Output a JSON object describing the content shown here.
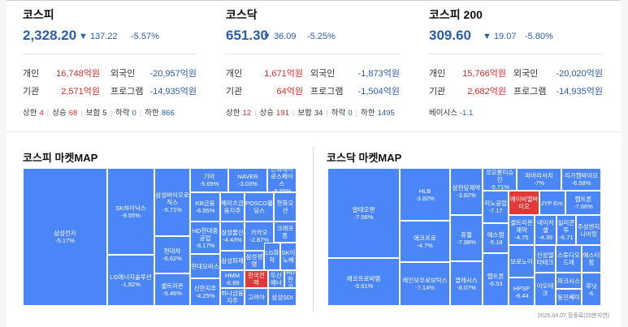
{
  "indices": [
    {
      "name": "코스피",
      "value": "2,328.20",
      "change": "▼ 137.22",
      "rate": "-5.57%",
      "rows": [
        {
          "l1": "개인",
          "v1": "16,748억원",
          "l2": "외국인",
          "v2": "-20,957억원"
        },
        {
          "l1": "기관",
          "v1": "2,571억원",
          "l2": "프로그램",
          "v2": "-14,935억원"
        }
      ],
      "stats": [
        {
          "label": "상한",
          "value": "4",
          "color": "red"
        },
        {
          "label": "상승",
          "value": "68",
          "color": "red"
        },
        {
          "label": "보합",
          "value": "5",
          "color": "gray"
        },
        {
          "label": "하락",
          "value": "0",
          "color": "blue"
        },
        {
          "label": "하한",
          "value": "866",
          "color": "blue"
        }
      ]
    },
    {
      "name": "코스닥",
      "value": "651.30",
      "change": "▼ 36.09",
      "rate": "-5.25%",
      "rows": [
        {
          "l1": "개인",
          "v1": "1,671억원",
          "l2": "외국인",
          "v2": "-1,873억원"
        },
        {
          "l1": "기관",
          "v1": "64억원",
          "l2": "프로그램",
          "v2": "-1,504억원"
        }
      ],
      "stats": [
        {
          "label": "상한",
          "value": "12",
          "color": "red"
        },
        {
          "label": "상승",
          "value": "191",
          "color": "red"
        },
        {
          "label": "보합",
          "value": "34",
          "color": "gray"
        },
        {
          "label": "하락",
          "value": "0",
          "color": "blue"
        },
        {
          "label": "하한",
          "value": "1495",
          "color": "blue"
        }
      ]
    },
    {
      "name": "코스피 200",
      "value": "309.60",
      "change": "▼ 19.07",
      "rate": "-5.80%",
      "rows": [
        {
          "l1": "개인",
          "v1": "15,766억원",
          "l2": "외국인",
          "v2": "-20,020억원"
        },
        {
          "l1": "기관",
          "v1": "2,682억원",
          "l2": "프로그램",
          "v2": "-14,935억원"
        }
      ],
      "stats": [
        {
          "label": "베이시스",
          "value": "-1.1",
          "color": "blue"
        }
      ]
    }
  ],
  "maps": [
    {
      "title": "코스피 마켓MAP",
      "tiles": [
        {
          "name": "삼성전자",
          "rate": "-5.17%",
          "color": "blue"
        },
        {
          "name": "SK하이닉스",
          "rate": "-9.55%",
          "color": "blue"
        },
        {
          "name": "LG에너지솔루션",
          "rate": "-1.82%",
          "color": "blue"
        },
        {
          "name": "삼성바이오로직스",
          "rate": "-5.71%",
          "color": "blue"
        },
        {
          "name": "현대차",
          "rate": "-6.62%",
          "color": "blue"
        },
        {
          "name": "셀트리온",
          "rate": "-5.46%",
          "color": "blue"
        },
        {
          "name": "기아",
          "rate": "-5.69%",
          "color": "blue"
        },
        {
          "name": "NAVER",
          "rate": "-3.03%",
          "color": "blue"
        },
        {
          "name": "한화에어로스페이스",
          "rate": "-8.55%",
          "color": "blue"
        },
        {
          "name": "KB금융",
          "rate": "-6.95%",
          "color": "blue"
        },
        {
          "name": "메리츠금융지주",
          "rate": "",
          "color": "blue"
        },
        {
          "name": "POSCO홀딩스",
          "rate": "",
          "color": "blue"
        },
        {
          "name": "한화오션",
          "rate": "",
          "color": "blue"
        },
        {
          "name": "HD현대중공업",
          "rate": "-8.17%",
          "color": "blue"
        },
        {
          "name": "삼성물산",
          "rate": "-4.43%",
          "color": "blue"
        },
        {
          "name": "카카오",
          "rate": "-2.87%",
          "color": "blue"
        },
        {
          "name": "크래프톤",
          "rate": "",
          "color": "blue"
        },
        {
          "name": "삼성화재",
          "rate": "",
          "color": "blue"
        },
        {
          "name": "삼성생명",
          "rate": "",
          "color": "blue"
        },
        {
          "name": "LG화학",
          "rate": "",
          "color": "blue"
        },
        {
          "name": "SK이노베",
          "rate": "",
          "color": "blue"
        },
        {
          "name": "현대모비스",
          "rate": "",
          "color": "blue"
        },
        {
          "name": "HMM",
          "rate": "-6.89",
          "color": "blue"
        },
        {
          "name": "한국전력",
          "rate": "",
          "color": "red"
        },
        {
          "name": "두산에너",
          "rate": "",
          "color": "blue"
        },
        {
          "name": "HD한국",
          "rate": "",
          "color": "blue"
        },
        {
          "name": "신한지주",
          "rate": "-4.25%",
          "color": "blue"
        },
        {
          "name": "하나금융지주",
          "rate": "",
          "color": "blue"
        },
        {
          "name": "고려아",
          "rate": "",
          "color": "blue"
        },
        {
          "name": "삼성SDI",
          "rate": "",
          "color": "blue"
        }
      ]
    },
    {
      "title": "코스닥 마켓MAP",
      "tiles": [
        {
          "name": "알테오젠",
          "rate": "-7.58%",
          "color": "blue"
        },
        {
          "name": "에코프로비엠",
          "rate": "-5.61%",
          "color": "blue"
        },
        {
          "name": "HLB",
          "rate": "-3.82%",
          "color": "blue"
        },
        {
          "name": "에코프로",
          "rate": "-4.7%",
          "color": "blue"
        },
        {
          "name": "레인보우로보틱스",
          "rate": "-7.14%",
          "color": "blue"
        },
        {
          "name": "삼천당제약",
          "rate": "-3.82%",
          "color": "blue"
        },
        {
          "name": "휴젤",
          "rate": "-7.98%",
          "color": "blue"
        },
        {
          "name": "클래시스",
          "rate": "-8.07%",
          "color": "blue"
        },
        {
          "name": "코오롱티슈진",
          "rate": "-5.71%",
          "color": "blue"
        },
        {
          "name": "파마리서치",
          "rate": "-7%",
          "color": "blue"
        },
        {
          "name": "리가켐바이오",
          "rate": "-6.58%",
          "color": "blue"
        },
        {
          "name": "리노공업",
          "rate": "-7.17",
          "color": "blue"
        },
        {
          "name": "에이비엘바이오",
          "rate": "",
          "color": "red"
        },
        {
          "name": "JYP Ent.",
          "rate": "",
          "color": "blue"
        },
        {
          "name": "펩트론",
          "rate": "-7.66%",
          "color": "blue"
        },
        {
          "name": "셀트리온제약",
          "rate": "-4.75",
          "color": "blue"
        },
        {
          "name": "네이처셀",
          "rate": "-4.39",
          "color": "blue"
        },
        {
          "name": "실리콘투",
          "rate": "-6.71",
          "color": "blue"
        },
        {
          "name": "주성엔지니어링",
          "rate": "",
          "color": "blue"
        },
        {
          "name": "에스엠",
          "rate": "-5.18",
          "color": "blue"
        },
        {
          "name": "보로노이",
          "rate": "",
          "color": "blue"
        },
        {
          "name": "신성델타테크",
          "rate": "",
          "color": "blue"
        },
        {
          "name": "스튜디오드래",
          "rate": "",
          "color": "blue"
        },
        {
          "name": "에스티팜",
          "rate": "",
          "color": "blue"
        },
        {
          "name": "펩트론",
          "rate": "-6.53",
          "color": "blue"
        },
        {
          "name": "HPSP",
          "rate": "-9.44",
          "color": "blue"
        },
        {
          "name": "이오테크",
          "rate": "",
          "color": "blue"
        },
        {
          "name": "파크시스",
          "rate": "",
          "color": "blue"
        },
        {
          "name": "동진쎄미",
          "rate": "",
          "color": "blue"
        },
        {
          "name": "루닛",
          "rate": "-6.",
          "color": "blue"
        }
      ]
    }
  ],
  "footnote": "2025.04.07 장종료(20분지연)",
  "colors": {
    "down": "#4a86f7",
    "up": "#e23838",
    "value_blue": "#2a5db0",
    "red_text": "#d62b2b"
  }
}
